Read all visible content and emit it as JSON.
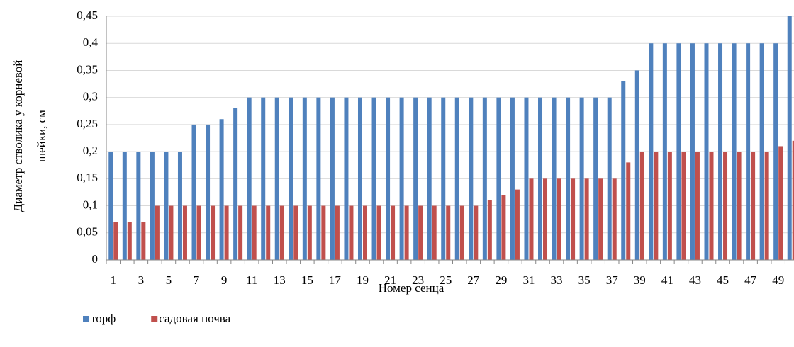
{
  "chart_data": {
    "type": "bar",
    "y_label": [
      "Диаметр стволика  у корневой",
      "шейки, см"
    ],
    "x_label": "Номер сенца",
    "categories": [
      "1",
      null,
      "3",
      null,
      "5",
      null,
      "7",
      null,
      "9",
      null,
      "11",
      null,
      "13",
      null,
      "15",
      null,
      "17",
      null,
      "19",
      null,
      "21",
      null,
      "23",
      null,
      "25",
      null,
      "27",
      null,
      "29",
      null,
      "31",
      null,
      "33",
      null,
      "35",
      null,
      "37",
      null,
      "39",
      null,
      "41",
      null,
      "43",
      null,
      "45",
      null,
      "47",
      null,
      "49",
      null
    ],
    "series": [
      {
        "name": "торф",
        "color": "#4f81bd",
        "values": [
          0.2,
          0.2,
          0.2,
          0.2,
          0.2,
          0.2,
          0.25,
          0.25,
          0.26,
          0.28,
          0.3,
          0.3,
          0.3,
          0.3,
          0.3,
          0.3,
          0.3,
          0.3,
          0.3,
          0.3,
          0.3,
          0.3,
          0.3,
          0.3,
          0.3,
          0.3,
          0.3,
          0.3,
          0.3,
          0.3,
          0.3,
          0.3,
          0.3,
          0.3,
          0.3,
          0.3,
          0.3,
          0.33,
          0.35,
          0.4,
          0.4,
          0.4,
          0.4,
          0.4,
          0.4,
          0.4,
          0.4,
          0.4,
          0.4,
          0.45
        ]
      },
      {
        "name": "садовая почва",
        "color": "#c0504d",
        "values": [
          0.07,
          0.07,
          0.07,
          0.1,
          0.1,
          0.1,
          0.1,
          0.1,
          0.1,
          0.1,
          0.1,
          0.1,
          0.1,
          0.1,
          0.1,
          0.1,
          0.1,
          0.1,
          0.1,
          0.1,
          0.1,
          0.1,
          0.1,
          0.1,
          0.1,
          0.1,
          0.1,
          0.11,
          0.12,
          0.13,
          0.15,
          0.15,
          0.15,
          0.15,
          0.15,
          0.15,
          0.15,
          0.18,
          0.2,
          0.2,
          0.2,
          0.2,
          0.2,
          0.2,
          0.2,
          0.2,
          0.2,
          0.2,
          0.21,
          0.22
        ]
      }
    ],
    "ylim": [
      0,
      0.45
    ],
    "yticks": [
      0,
      {
        "value": 0.05,
        "label": "0,05"
      },
      {
        "value": 0.1,
        "label": "0,1"
      },
      {
        "value": 0.15,
        "label": "0,15"
      },
      {
        "value": 0.2,
        "label": "0,2"
      },
      {
        "value": 0.25,
        "label": "0,25"
      },
      {
        "value": 0.3,
        "label": "0,3"
      },
      {
        "value": 0.35,
        "label": "0,35"
      },
      {
        "value": 0.4,
        "label": "0,4"
      },
      {
        "value": 0.45,
        "label": "0,45"
      }
    ],
    "grid": true,
    "legend": "bottom-left"
  }
}
